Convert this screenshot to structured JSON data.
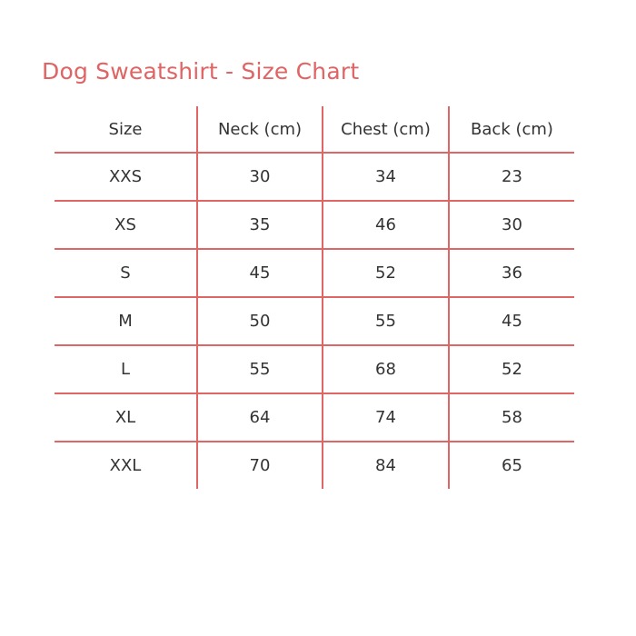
{
  "title": "Dog Sweatshirt - Size Chart",
  "colors": {
    "accent": "#e06464",
    "text": "#333333"
  },
  "table": {
    "headers": [
      "Size",
      "Neck (cm)",
      "Chest (cm)",
      "Back (cm)"
    ],
    "rows": [
      [
        "XXS",
        "30",
        "34",
        "23"
      ],
      [
        "XS",
        "35",
        "46",
        "30"
      ],
      [
        "S",
        "45",
        "52",
        "36"
      ],
      [
        "M",
        "50",
        "55",
        "45"
      ],
      [
        "L",
        "55",
        "68",
        "52"
      ],
      [
        "XL",
        "64",
        "74",
        "58"
      ],
      [
        "XXL",
        "70",
        "84",
        "65"
      ]
    ]
  }
}
